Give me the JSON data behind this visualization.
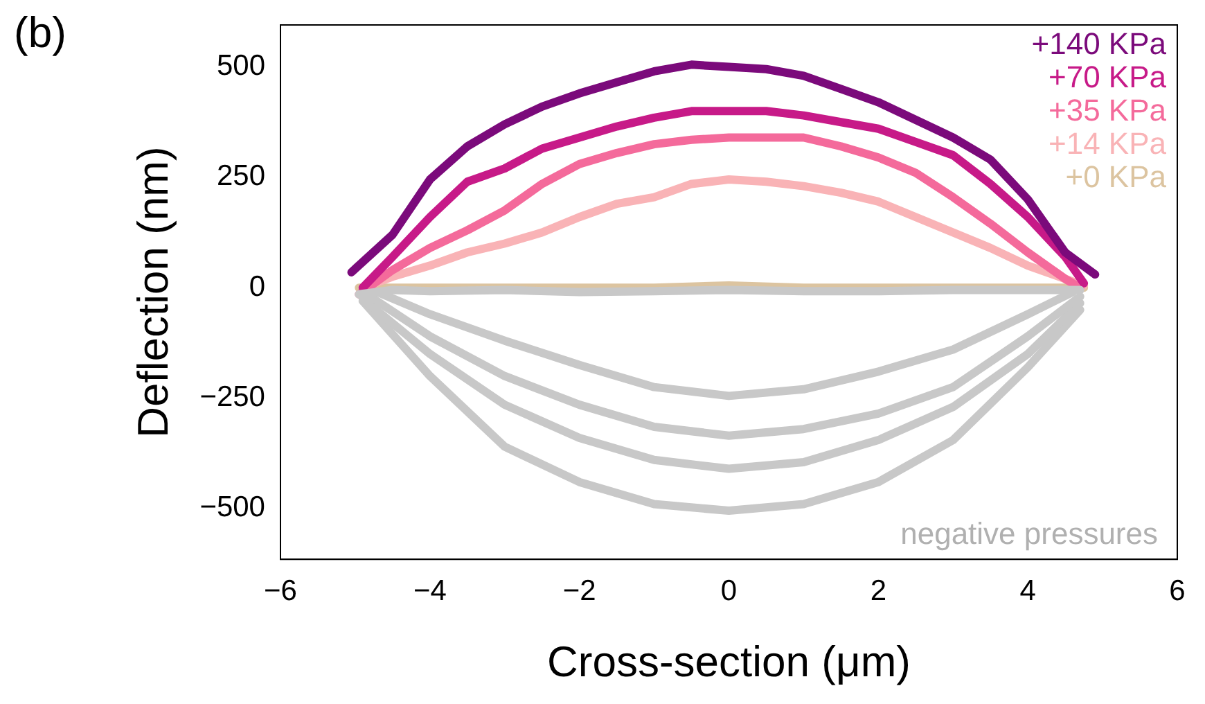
{
  "chart_data": {
    "type": "line",
    "title": "(b)",
    "xlabel": "Cross-section (μm)",
    "ylabel": "Deflection (nm)",
    "xlim": [
      -6,
      6
    ],
    "xticks": [
      -6,
      -4,
      -2,
      0,
      2,
      4,
      6
    ],
    "ylim": [
      -615,
      595
    ],
    "yticks": [
      -500,
      -250,
      0,
      250,
      500
    ],
    "grid": false,
    "legend": "top right",
    "marker": "none",
    "line_style": "solid",
    "annotations": [
      "negative pressures"
    ],
    "series": [
      {
        "color": "#c8c8c8",
        "x": [
          -4.95,
          -4.5,
          -4,
          -3,
          -2,
          -1,
          0,
          1,
          2,
          3,
          4,
          4.7
        ],
        "values": [
          -15,
          -5,
          -8,
          -5,
          -10,
          -8,
          -5,
          -8,
          -8,
          -5,
          -5,
          -5
        ]
      },
      {
        "color": "#c8c8c8",
        "x": [
          -4.7,
          -4,
          -3,
          -2,
          -1,
          0,
          1,
          2,
          3,
          4,
          4.6
        ],
        "values": [
          -10,
          -60,
          -120,
          -175,
          -225,
          -245,
          -230,
          -190,
          -140,
          -60,
          -10
        ]
      },
      {
        "color": "#c8c8c8",
        "x": [
          -4.8,
          -4,
          -3,
          -2,
          -1,
          0,
          1,
          2,
          3,
          4,
          4.7
        ],
        "values": [
          -20,
          -110,
          -200,
          -265,
          -315,
          -335,
          -320,
          -285,
          -225,
          -110,
          -20
        ]
      },
      {
        "color": "#c8c8c8",
        "x": [
          -4.9,
          -4,
          -3,
          -2,
          -1,
          0,
          1,
          2,
          3,
          4,
          4.7
        ],
        "values": [
          -25,
          -150,
          -265,
          -340,
          -390,
          -410,
          -395,
          -345,
          -270,
          -150,
          -35
        ]
      },
      {
        "color": "#c8c8c8",
        "x": [
          -4.9,
          -4,
          -3,
          -2,
          -1,
          0,
          1,
          2,
          3,
          4,
          4.7
        ],
        "values": [
          -30,
          -200,
          -360,
          -440,
          -490,
          -505,
          -490,
          -440,
          -345,
          -180,
          -50
        ]
      },
      {
        "name": "+140 KPa",
        "color": "#7b0a7b",
        "x": [
          -5.05,
          -4.5,
          -4,
          -3.5,
          -3,
          -2.5,
          -2,
          -1.5,
          -1,
          -0.5,
          0,
          0.5,
          1,
          1.5,
          2,
          2.5,
          3,
          3.5,
          4,
          4.5,
          4.9
        ],
        "values": [
          35,
          120,
          245,
          320,
          370,
          410,
          440,
          465,
          490,
          505,
          500,
          495,
          480,
          450,
          420,
          380,
          340,
          290,
          200,
          80,
          30
        ]
      },
      {
        "name": "+70 KPa",
        "color": "#c71a88",
        "x": [
          -4.9,
          -4.5,
          -4,
          -3.5,
          -3,
          -2.5,
          -2,
          -1.5,
          -1,
          -0.5,
          0,
          0.5,
          1,
          1.5,
          2,
          2.5,
          3,
          3.5,
          4,
          4.5,
          4.75
        ],
        "values": [
          0,
          70,
          160,
          240,
          270,
          315,
          340,
          365,
          385,
          400,
          400,
          400,
          390,
          375,
          360,
          330,
          300,
          235,
          160,
          70,
          10
        ]
      },
      {
        "name": "+35 KPa",
        "color": "#f46a9b",
        "x": [
          -4.95,
          -4.5,
          -4,
          -3.5,
          -3,
          -2.5,
          -2,
          -1.5,
          -1,
          -0.5,
          0,
          0.5,
          1,
          1.5,
          2,
          2.5,
          3,
          3.5,
          4,
          4.5,
          4.7
        ],
        "values": [
          -15,
          40,
          90,
          130,
          175,
          235,
          280,
          305,
          325,
          335,
          340,
          340,
          340,
          320,
          295,
          260,
          205,
          145,
          80,
          20,
          0
        ]
      },
      {
        "name": "+14 KPa",
        "color": "#f9b3b6",
        "x": [
          -4.9,
          -4.5,
          -4,
          -3.5,
          -3,
          -2.5,
          -2,
          -1.5,
          -1,
          -0.5,
          0,
          0.5,
          1,
          1.5,
          2,
          2.5,
          3,
          3.5,
          4,
          4.5,
          4.75
        ],
        "values": [
          0,
          25,
          50,
          80,
          100,
          125,
          160,
          190,
          205,
          235,
          245,
          240,
          230,
          215,
          195,
          160,
          125,
          90,
          50,
          20,
          5
        ]
      },
      {
        "name": "+0 KPa",
        "color": "#dcc4a0",
        "x": [
          -4.95,
          -4,
          -3,
          -2,
          -1,
          0,
          1,
          2,
          3,
          4,
          4.75
        ],
        "values": [
          0,
          0,
          0,
          0,
          0,
          5,
          0,
          0,
          0,
          0,
          0
        ]
      }
    ]
  }
}
